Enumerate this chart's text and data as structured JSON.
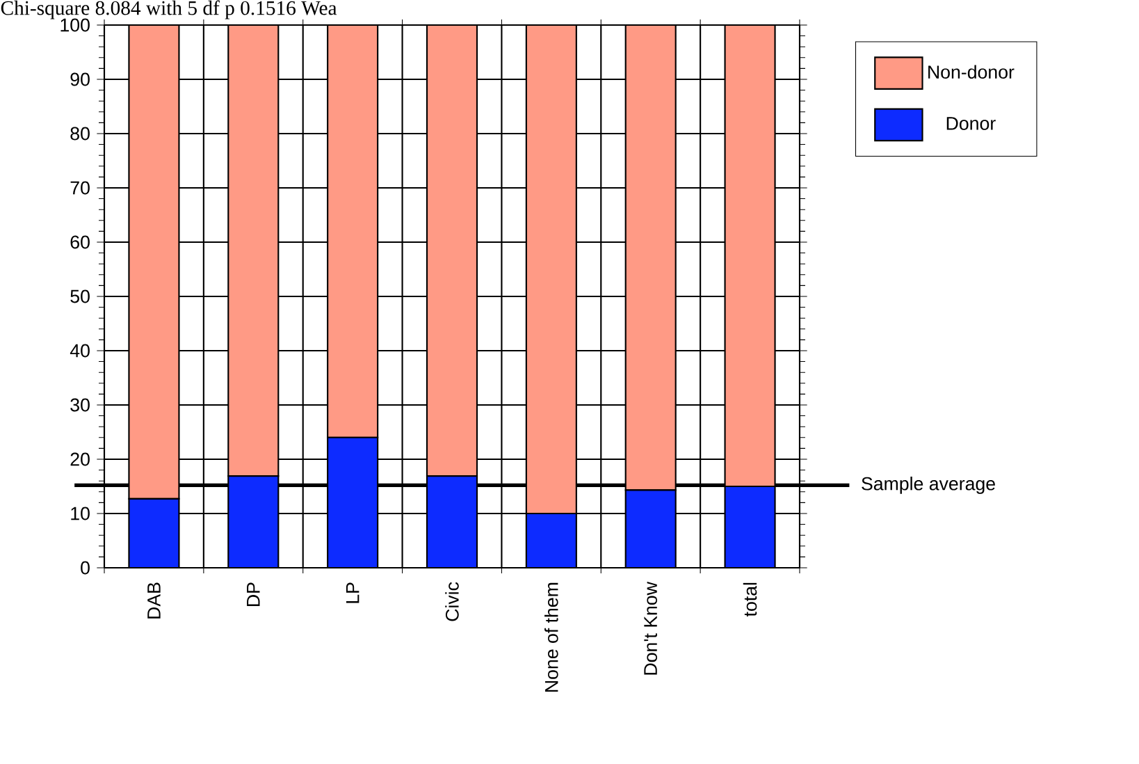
{
  "chart_data": {
    "type": "bar",
    "title": "Chi-square 8.084 with 5 df p 0.1516 Wea",
    "categories": [
      "DAB",
      "DP",
      "LP",
      "Civic",
      "None of them",
      "Don't Know",
      "total"
    ],
    "stacked": true,
    "series": [
      {
        "name": "Donor",
        "color": "#0d2bff",
        "values": [
          12.7,
          16.9,
          24.0,
          16.9,
          10.0,
          14.3,
          15.0
        ]
      },
      {
        "name": "Non-donor",
        "color": "#ff9a85",
        "values": [
          87.3,
          83.1,
          76.0,
          83.1,
          90.0,
          85.7,
          85.0
        ]
      }
    ],
    "ylim": [
      0,
      100
    ],
    "yticks": [
      0,
      10,
      20,
      30,
      40,
      50,
      60,
      70,
      80,
      90,
      100
    ],
    "grid": true,
    "legend": "top right",
    "ref_lines": [
      {
        "axis": "y",
        "value": 15.2,
        "label": "Sample average",
        "color": "#000000"
      }
    ]
  }
}
